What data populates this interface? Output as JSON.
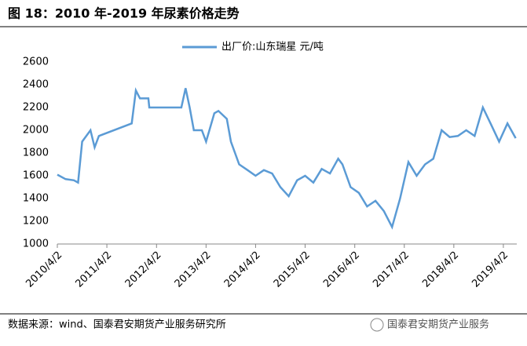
{
  "chart_data": {
    "type": "line",
    "title": "图 18：2010 年-2019 年尿素价格走势",
    "source": "数据来源：wind、国泰君安期货产业服务研究所",
    "watermark": "国泰君安期货产业服务",
    "x": [
      "2010/4/2",
      "2010/6/2",
      "2010/8/2",
      "2010/9/2",
      "2010/10/2",
      "2010/12/2",
      "2011/1/2",
      "2011/2/2",
      "2011/10/2",
      "2011/11/2",
      "2011/12/2",
      "2012/2/2",
      "2012/2/9",
      "2012/10/2",
      "2012/11/2",
      "2012/12/2",
      "2013/1/2",
      "2013/3/2",
      "2013/4/2",
      "2013/6/2",
      "2013/7/2",
      "2013/9/2",
      "2013/10/2",
      "2013/12/2",
      "2014/2/2",
      "2014/4/2",
      "2014/6/2",
      "2014/8/2",
      "2014/10/2",
      "2014/12/2",
      "2015/2/2",
      "2015/4/2",
      "2015/6/2",
      "2015/8/2",
      "2015/10/2",
      "2015/12/2",
      "2016/1/2",
      "2016/3/2",
      "2016/5/2",
      "2016/7/2",
      "2016/9/2",
      "2016/11/2",
      "2017/1/2",
      "2017/3/2",
      "2017/5/2",
      "2017/7/2",
      "2017/9/2",
      "2017/11/2",
      "2018/1/2",
      "2018/3/2",
      "2018/5/2",
      "2018/7/2",
      "2018/9/2",
      "2018/11/2",
      "2019/1/2",
      "2019/3/2",
      "2019/5/2",
      "2019/7/2"
    ],
    "series": [
      {
        "name": "出厂价:山东瑞星  元/吨",
        "color": "#5b9bd5",
        "values": [
          1610,
          1570,
          1560,
          1540,
          1900,
          2000,
          1850,
          1950,
          2060,
          2350,
          2280,
          2280,
          2200,
          2200,
          2370,
          2200,
          2000,
          2000,
          1900,
          2150,
          2170,
          2100,
          1900,
          1700,
          1650,
          1600,
          1650,
          1620,
          1500,
          1420,
          1560,
          1600,
          1540,
          1660,
          1620,
          1750,
          1700,
          1500,
          1450,
          1330,
          1380,
          1290,
          1150,
          1400,
          1720,
          1600,
          1700,
          1750,
          2000,
          1940,
          1950,
          2000,
          1950,
          2200,
          2050,
          1900,
          2060,
          1930
        ]
      }
    ],
    "xlim": [
      "2010/4/2",
      "2019/7/10"
    ],
    "xticks": [
      "2010/4/2",
      "2011/4/2",
      "2012/4/2",
      "2013/4/2",
      "2014/4/2",
      "2015/4/2",
      "2016/4/2",
      "2017/4/2",
      "2018/4/2",
      "2019/4/2"
    ],
    "ylim": [
      1000,
      2600
    ],
    "yticks": [
      1000,
      1200,
      1400,
      1600,
      1800,
      2000,
      2200,
      2400,
      2600
    ],
    "legend": "top"
  }
}
